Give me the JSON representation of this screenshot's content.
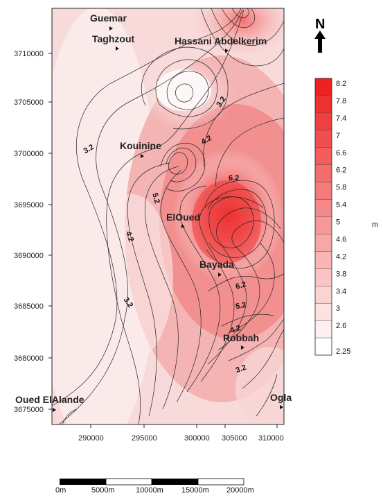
{
  "map": {
    "north_label": "N",
    "x_ticks": [
      "290000",
      "295000",
      "300000",
      "305000",
      "310000"
    ],
    "y_ticks": [
      "3710000",
      "3705000",
      "3700000",
      "3695000",
      "3690000",
      "3685000",
      "3680000",
      "3675000"
    ],
    "places": [
      {
        "id": "guemar",
        "name": "Guemar"
      },
      {
        "id": "taghzout",
        "name": "Taghzout"
      },
      {
        "id": "hassani",
        "name": "Hassani Abdelkerim"
      },
      {
        "id": "kouinine",
        "name": "Kouinine"
      },
      {
        "id": "eloued",
        "name": "ElOued"
      },
      {
        "id": "bayada",
        "name": "Bayada"
      },
      {
        "id": "robbah",
        "name": "Robbah"
      },
      {
        "id": "oued-elalande",
        "name": "Oued ElAlande"
      },
      {
        "id": "ogla",
        "name": "Ogla"
      }
    ],
    "contour_labels": [
      "3.2",
      "4.2",
      "3.2",
      "5.2",
      "6.2",
      "4.2",
      "3.2",
      "6.2",
      "5.2",
      "4.2",
      "3.2"
    ],
    "legend": {
      "values": [
        "8.2",
        "7.8",
        "7.4",
        "7",
        "6.6",
        "6.2",
        "5.8",
        "5.4",
        "5",
        "4.6",
        "4.2",
        "3.8",
        "3.4",
        "3",
        "2.6",
        "2.25"
      ],
      "side_mark": "m"
    },
    "scale_bar": {
      "labels": [
        "0m",
        "5000m",
        "10000m",
        "15000m",
        "20000m"
      ]
    },
    "colors": {
      "low": "#fbeeee",
      "high": "#ee2222",
      "contour": "#222222"
    }
  }
}
